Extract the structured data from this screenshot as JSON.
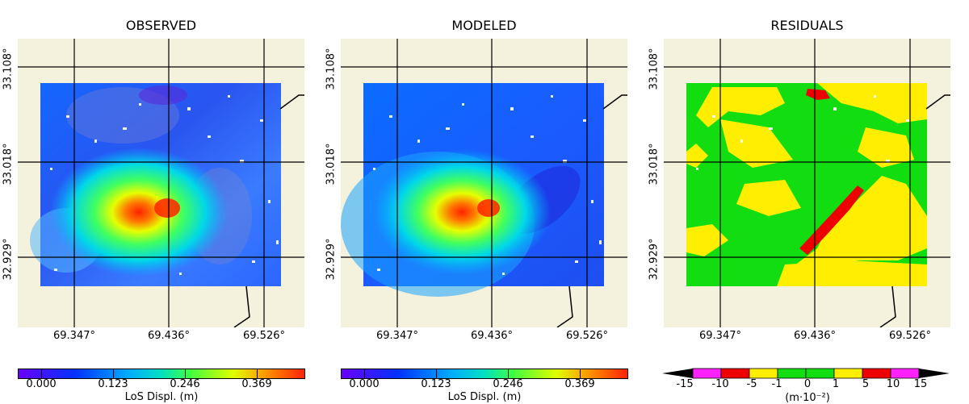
{
  "panels": [
    {
      "title": "OBSERVED"
    },
    {
      "title": "MODELED"
    },
    {
      "title": "RESIDUALS"
    }
  ],
  "axes": {
    "lat_ticks": [
      "33.108°",
      "33.018°",
      "32.929°"
    ],
    "lon_ticks": [
      "69.347°",
      "69.436°",
      "69.526°"
    ]
  },
  "colorbar_continuous": {
    "ticks": [
      "0.000",
      "0.123",
      "0.246",
      "0.369"
    ],
    "label": "LoS Displ. (m)",
    "colors": [
      "#6a00ff",
      "#0033ff",
      "#00aaff",
      "#00e0c0",
      "#40ff40",
      "#e0ff00",
      "#ff8800",
      "#ff2200"
    ]
  },
  "colorbar_residuals": {
    "ticks": [
      "-15",
      "-10",
      "-5",
      "-1",
      "0",
      "1",
      "5",
      "10",
      "15"
    ],
    "label": "(m·10⁻²)",
    "colors": {
      "extend": "#000000",
      "magenta": "#ff22ff",
      "red": "#ee0000",
      "yellow": "#ffee00",
      "green": "#11dd11"
    }
  },
  "colors": {
    "background": "#f4f1dc",
    "grid": "#000000"
  }
}
